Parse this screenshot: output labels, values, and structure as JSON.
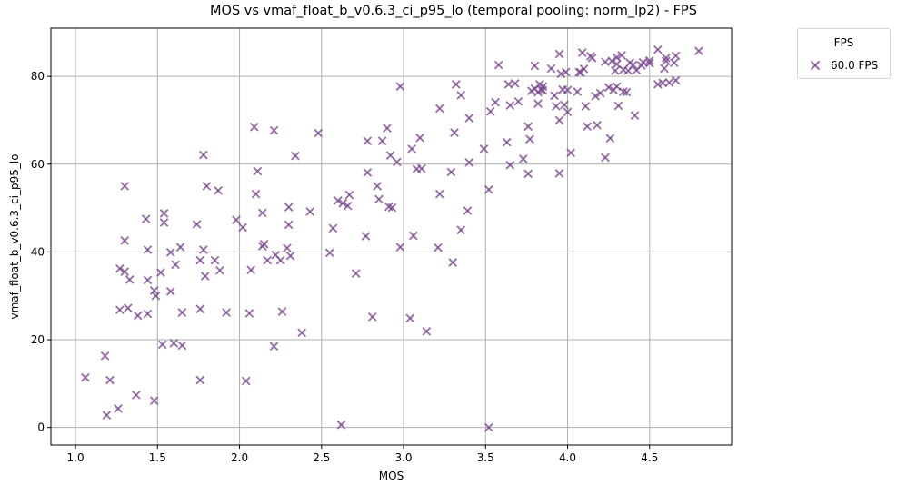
{
  "chart_data": {
    "type": "scatter",
    "title": "MOS vs vmaf_float_b_v0.6.3_ci_p95_lo (temporal pooling: norm_lp2) - FPS",
    "xlabel": "MOS",
    "ylabel": "vmaf_float_b_v0.6.3_ci_p95_lo",
    "xlim": [
      0.85,
      5.0
    ],
    "ylim": [
      -4,
      91
    ],
    "xticks": [
      "1.0",
      "1.5",
      "2.0",
      "2.5",
      "3.0",
      "3.5",
      "4.0",
      "4.5"
    ],
    "yticks": [
      "0",
      "20",
      "40",
      "60",
      "80"
    ],
    "grid": true,
    "legend": {
      "title": "FPS",
      "position": "outside top-right"
    },
    "marker": "x",
    "color": "#7b4a8f",
    "series": [
      {
        "name": "60.0 FPS",
        "points": [
          [
            1.06,
            11.4
          ],
          [
            1.18,
            16.3
          ],
          [
            1.19,
            2.8
          ],
          [
            1.21,
            10.8
          ],
          [
            1.26,
            4.3
          ],
          [
            1.27,
            26.8
          ],
          [
            1.27,
            36.2
          ],
          [
            1.3,
            55.0
          ],
          [
            1.3,
            42.6
          ],
          [
            1.3,
            35.5
          ],
          [
            1.32,
            27.2
          ],
          [
            1.33,
            33.7
          ],
          [
            1.37,
            7.4
          ],
          [
            1.38,
            25.5
          ],
          [
            1.43,
            47.5
          ],
          [
            1.44,
            40.5
          ],
          [
            1.44,
            33.6
          ],
          [
            1.44,
            25.9
          ],
          [
            1.48,
            6.1
          ],
          [
            1.48,
            31.2
          ],
          [
            1.49,
            30.0
          ],
          [
            1.52,
            35.3
          ],
          [
            1.53,
            18.9
          ],
          [
            1.54,
            48.8
          ],
          [
            1.54,
            46.7
          ],
          [
            1.58,
            31.0
          ],
          [
            1.58,
            39.9
          ],
          [
            1.6,
            19.2
          ],
          [
            1.61,
            37.1
          ],
          [
            1.64,
            41.1
          ],
          [
            1.65,
            18.7
          ],
          [
            1.65,
            26.2
          ],
          [
            1.74,
            46.3
          ],
          [
            1.76,
            10.8
          ],
          [
            1.76,
            38.1
          ],
          [
            1.76,
            27.0
          ],
          [
            1.78,
            62.1
          ],
          [
            1.78,
            40.5
          ],
          [
            1.79,
            34.5
          ],
          [
            1.8,
            55.0
          ],
          [
            1.85,
            38.1
          ],
          [
            1.87,
            54.0
          ],
          [
            1.88,
            35.8
          ],
          [
            1.92,
            26.2
          ],
          [
            1.98,
            47.3
          ],
          [
            2.02,
            45.6
          ],
          [
            2.04,
            10.6
          ],
          [
            2.06,
            26.0
          ],
          [
            2.07,
            35.9
          ],
          [
            2.09,
            68.5
          ],
          [
            2.1,
            53.2
          ],
          [
            2.11,
            58.4
          ],
          [
            2.14,
            48.9
          ],
          [
            2.14,
            41.3
          ],
          [
            2.15,
            41.8
          ],
          [
            2.17,
            38.1
          ],
          [
            2.21,
            18.5
          ],
          [
            2.21,
            67.7
          ],
          [
            2.22,
            39.3
          ],
          [
            2.25,
            38.1
          ],
          [
            2.26,
            26.4
          ],
          [
            2.29,
            40.9
          ],
          [
            2.3,
            50.2
          ],
          [
            2.3,
            46.2
          ],
          [
            2.31,
            39.1
          ],
          [
            2.34,
            61.9
          ],
          [
            2.38,
            21.6
          ],
          [
            2.43,
            49.2
          ],
          [
            2.48,
            67.1
          ],
          [
            2.55,
            39.8
          ],
          [
            2.57,
            45.4
          ],
          [
            2.6,
            51.7
          ],
          [
            2.62,
            0.6
          ],
          [
            2.63,
            51.1
          ],
          [
            2.66,
            50.5
          ],
          [
            2.67,
            53.0
          ],
          [
            2.71,
            35.1
          ],
          [
            2.77,
            43.6
          ],
          [
            2.78,
            58.1
          ],
          [
            2.78,
            65.3
          ],
          [
            2.81,
            25.2
          ],
          [
            2.84,
            55.0
          ],
          [
            2.85,
            52.0
          ],
          [
            2.87,
            65.3
          ],
          [
            2.9,
            68.2
          ],
          [
            2.91,
            50.3
          ],
          [
            2.92,
            62.0
          ],
          [
            2.93,
            50.1
          ],
          [
            2.96,
            60.5
          ],
          [
            2.98,
            77.7
          ],
          [
            2.98,
            41.1
          ],
          [
            3.04,
            24.9
          ],
          [
            3.05,
            63.5
          ],
          [
            3.06,
            43.7
          ],
          [
            3.08,
            58.9
          ],
          [
            3.1,
            66.0
          ],
          [
            3.11,
            59.0
          ],
          [
            3.14,
            21.9
          ],
          [
            3.21,
            41.0
          ],
          [
            3.22,
            53.2
          ],
          [
            3.22,
            72.7
          ],
          [
            3.29,
            58.2
          ],
          [
            3.3,
            37.6
          ],
          [
            3.31,
            67.2
          ],
          [
            3.32,
            78.2
          ],
          [
            3.35,
            75.7
          ],
          [
            3.35,
            45.0
          ],
          [
            3.39,
            49.4
          ],
          [
            3.4,
            60.4
          ],
          [
            3.4,
            70.5
          ],
          [
            3.49,
            63.5
          ],
          [
            3.52,
            54.2
          ],
          [
            3.52,
            0.0
          ],
          [
            3.53,
            72.0
          ],
          [
            3.56,
            74.1
          ],
          [
            3.58,
            82.6
          ],
          [
            3.63,
            65.0
          ],
          [
            3.64,
            78.2
          ],
          [
            3.65,
            59.8
          ],
          [
            3.65,
            73.4
          ],
          [
            3.68,
            78.4
          ],
          [
            3.7,
            74.3
          ],
          [
            3.73,
            61.2
          ],
          [
            3.76,
            57.8
          ],
          [
            3.76,
            68.6
          ],
          [
            3.77,
            65.7
          ],
          [
            3.78,
            76.7
          ],
          [
            3.8,
            77.2
          ],
          [
            3.8,
            82.4
          ],
          [
            3.82,
            73.8
          ],
          [
            3.82,
            76.4
          ],
          [
            3.83,
            78.2
          ],
          [
            3.84,
            77.0
          ],
          [
            3.85,
            76.8
          ],
          [
            3.85,
            77.7
          ],
          [
            3.9,
            81.8
          ],
          [
            3.92,
            75.6
          ],
          [
            3.93,
            73.2
          ],
          [
            3.95,
            70.0
          ],
          [
            3.95,
            57.9
          ],
          [
            3.95,
            85.1
          ],
          [
            3.96,
            80.6
          ],
          [
            3.97,
            77.0
          ],
          [
            3.98,
            73.5
          ],
          [
            3.99,
            81.0
          ],
          [
            4.0,
            71.9
          ],
          [
            4.0,
            76.9
          ],
          [
            4.02,
            62.6
          ],
          [
            4.06,
            76.5
          ],
          [
            4.07,
            81.0
          ],
          [
            4.08,
            80.9
          ],
          [
            4.09,
            85.4
          ],
          [
            4.1,
            81.7
          ],
          [
            4.11,
            73.2
          ],
          [
            4.12,
            68.6
          ],
          [
            4.14,
            84.6
          ],
          [
            4.15,
            84.2
          ],
          [
            4.17,
            75.5
          ],
          [
            4.18,
            68.9
          ],
          [
            4.2,
            76.2
          ],
          [
            4.23,
            61.5
          ],
          [
            4.23,
            83.3
          ],
          [
            4.25,
            77.5
          ],
          [
            4.26,
            65.9
          ],
          [
            4.27,
            83.5
          ],
          [
            4.28,
            76.9
          ],
          [
            4.29,
            81.3
          ],
          [
            4.3,
            84.3
          ],
          [
            4.3,
            77.7
          ],
          [
            4.3,
            82.8
          ],
          [
            4.31,
            73.3
          ],
          [
            4.33,
            84.8
          ],
          [
            4.34,
            76.5
          ],
          [
            4.34,
            81.5
          ],
          [
            4.36,
            76.4
          ],
          [
            4.37,
            81.3
          ],
          [
            4.38,
            83.1
          ],
          [
            4.4,
            82.6
          ],
          [
            4.41,
            71.1
          ],
          [
            4.42,
            81.4
          ],
          [
            4.45,
            82.5
          ],
          [
            4.46,
            83.2
          ],
          [
            4.5,
            83.0
          ],
          [
            4.5,
            83.6
          ],
          [
            4.55,
            86.1
          ],
          [
            4.55,
            78.2
          ],
          [
            4.58,
            78.5
          ],
          [
            4.59,
            81.8
          ],
          [
            4.6,
            83.5
          ],
          [
            4.6,
            84.2
          ],
          [
            4.62,
            78.6
          ],
          [
            4.65,
            83.1
          ],
          [
            4.66,
            79.1
          ],
          [
            4.66,
            84.7
          ],
          [
            4.8,
            85.8
          ]
        ]
      }
    ]
  }
}
